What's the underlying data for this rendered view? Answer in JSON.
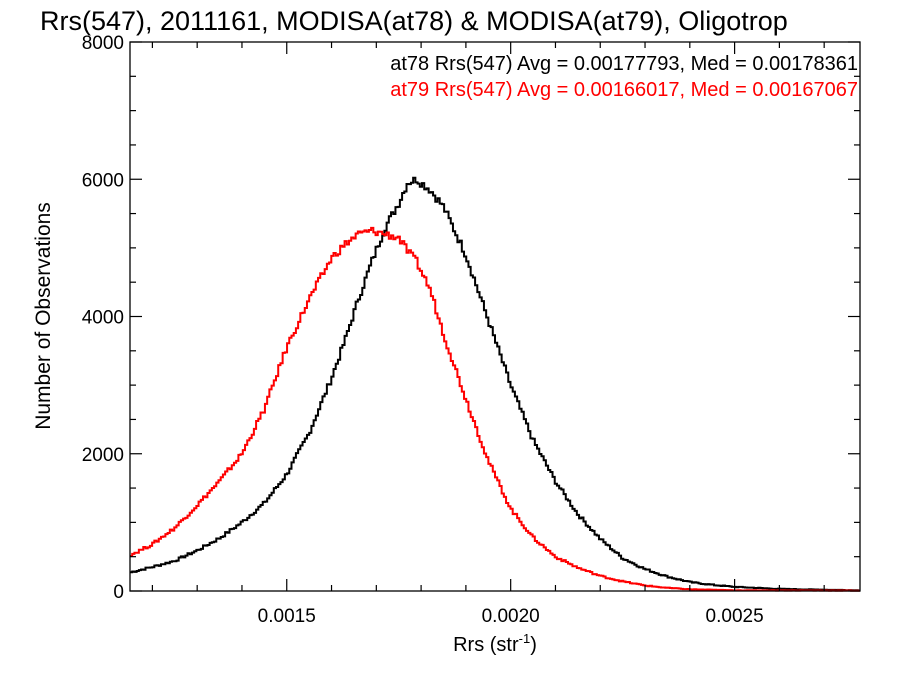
{
  "chart_data": {
    "type": "line",
    "title": "Rrs(547), 2011161, MODISA(at78) & MODISA(at79), Oligotrop",
    "xlabel": "Rrs (str",
    "xlabel_sup": "-1",
    "xlabel_close": ")",
    "ylabel": "Number of Observations",
    "xlim": [
      0.00115,
      0.00278
    ],
    "ylim": [
      0,
      8000
    ],
    "x_ticks": [
      {
        "value": 0.0015,
        "label": "0.0015"
      },
      {
        "value": 0.002,
        "label": "0.0020"
      },
      {
        "value": 0.0025,
        "label": "0.0025"
      }
    ],
    "y_ticks": [
      {
        "value": 0,
        "label": "0"
      },
      {
        "value": 2000,
        "label": "2000"
      },
      {
        "value": 4000,
        "label": "4000"
      },
      {
        "value": 6000,
        "label": "6000"
      },
      {
        "value": 8000,
        "label": "8000"
      }
    ],
    "legend_position": "top-right",
    "series": [
      {
        "name": "at78",
        "stats_text": "at78 Rrs(547) Avg = 0.00177793, Med = 0.00178361",
        "color": "#000000",
        "x": [
          0.00115,
          0.0012,
          0.00125,
          0.0013,
          0.00135,
          0.0014,
          0.00145,
          0.0015,
          0.00155,
          0.0016,
          0.00163,
          0.00166,
          0.00169,
          0.00172,
          0.00175,
          0.00177,
          0.00179,
          0.00182,
          0.00185,
          0.0019,
          0.00195,
          0.002,
          0.00205,
          0.0021,
          0.00215,
          0.0022,
          0.00225,
          0.0023,
          0.00235,
          0.0024,
          0.00245,
          0.0025,
          0.0026,
          0.00278
        ],
        "y": [
          270,
          350,
          440,
          590,
          770,
          1000,
          1280,
          1700,
          2300,
          3100,
          3650,
          4250,
          4800,
          5300,
          5650,
          5950,
          6000,
          5850,
          5600,
          4900,
          3950,
          3000,
          2200,
          1600,
          1120,
          760,
          480,
          320,
          210,
          130,
          90,
          60,
          30,
          10
        ]
      },
      {
        "name": "at79",
        "stats_text": "at79 Rrs(547) Avg = 0.00166017, Med = 0.00167067",
        "color": "#ff0000",
        "x": [
          0.00115,
          0.0012,
          0.00125,
          0.0013,
          0.00135,
          0.0014,
          0.00145,
          0.0015,
          0.00155,
          0.0016,
          0.00163,
          0.00166,
          0.00169,
          0.00172,
          0.00175,
          0.00177,
          0.00179,
          0.00182,
          0.00185,
          0.0019,
          0.00195,
          0.002,
          0.00205,
          0.0021,
          0.00215,
          0.0022,
          0.00225,
          0.0023,
          0.00235,
          0.0024,
          0.0025,
          0.00278
        ],
        "y": [
          520,
          680,
          920,
          1250,
          1600,
          2000,
          2650,
          3550,
          4250,
          4850,
          5050,
          5200,
          5250,
          5200,
          5150,
          4950,
          4800,
          4400,
          3750,
          2800,
          1900,
          1200,
          780,
          500,
          340,
          220,
          140,
          80,
          45,
          25,
          10,
          5
        ]
      }
    ]
  }
}
